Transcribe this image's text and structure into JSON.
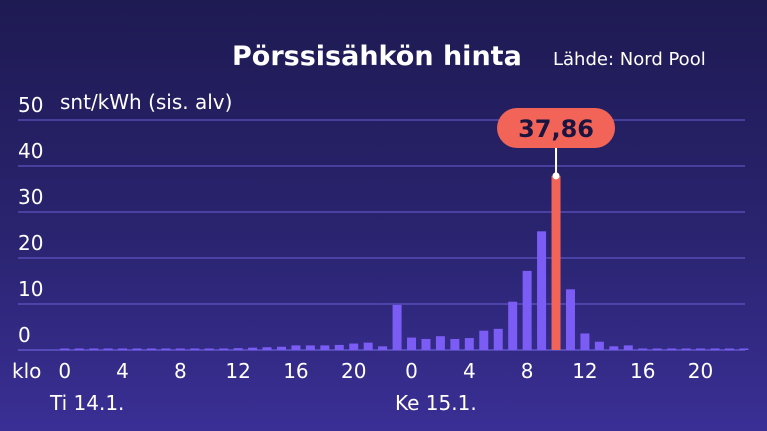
{
  "header": {
    "title": "Pörssisähkön hinta",
    "source": "Lähde: Nord Pool"
  },
  "colors": {
    "bar": "#7b5cf5",
    "highlight": "#f26457",
    "grid": "#6a5fd6",
    "text": "#ffffff"
  },
  "chart_data": {
    "type": "bar",
    "ylabel": "snt/kWh (sis. alv)",
    "ylim": [
      0,
      50
    ],
    "yticks": [
      "0",
      "10",
      "20",
      "30",
      "40",
      "50"
    ],
    "x_prefix": "klo",
    "xtick_labels": [
      "0",
      "4",
      "8",
      "12",
      "16",
      "20",
      "0",
      "4",
      "8",
      "12",
      "16",
      "20"
    ],
    "date_labels": [
      "Ti 14.1.",
      "Ke 15.1."
    ],
    "categories": [
      "14.1. 00",
      "14.1. 01",
      "14.1. 02",
      "14.1. 03",
      "14.1. 04",
      "14.1. 05",
      "14.1. 06",
      "14.1. 07",
      "14.1. 08",
      "14.1. 09",
      "14.1. 10",
      "14.1. 11",
      "14.1. 12",
      "14.1. 13",
      "14.1. 14",
      "14.1. 15",
      "14.1. 16",
      "14.1. 17",
      "14.1. 18",
      "14.1. 19",
      "14.1. 20",
      "14.1. 21",
      "14.1. 22",
      "14.1. 23",
      "15.1. 00",
      "15.1. 01",
      "15.1. 02",
      "15.1. 03",
      "15.1. 04",
      "15.1. 05",
      "15.1. 06",
      "15.1. 07",
      "15.1. 08",
      "15.1. 09",
      "15.1. 10",
      "15.1. 11",
      "15.1. 12",
      "15.1. 13",
      "15.1. 14",
      "15.1. 15",
      "15.1. 16",
      "15.1. 17",
      "15.1. 18",
      "15.1. 19",
      "15.1. 20",
      "15.1. 21",
      "15.1. 22",
      "15.1. 23"
    ],
    "values": [
      0,
      0,
      0,
      0,
      0,
      0.2,
      0.2,
      0.2,
      0.3,
      0.3,
      0.3,
      0.3,
      0.4,
      0.5,
      0.6,
      0.7,
      1.0,
      1.0,
      1.0,
      1.1,
      1.4,
      1.6,
      0.8,
      9.8,
      2.7,
      2.4,
      3.0,
      2.4,
      2.6,
      4.2,
      4.6,
      10.5,
      17.2,
      25.8,
      37.86,
      13.2,
      3.6,
      1.8,
      0.8,
      1.0,
      0.2,
      0.2,
      0.2,
      0.2,
      0.2,
      0.2,
      0.2,
      0.2
    ],
    "highlight_index": 34,
    "highlight_label": "37,86"
  }
}
